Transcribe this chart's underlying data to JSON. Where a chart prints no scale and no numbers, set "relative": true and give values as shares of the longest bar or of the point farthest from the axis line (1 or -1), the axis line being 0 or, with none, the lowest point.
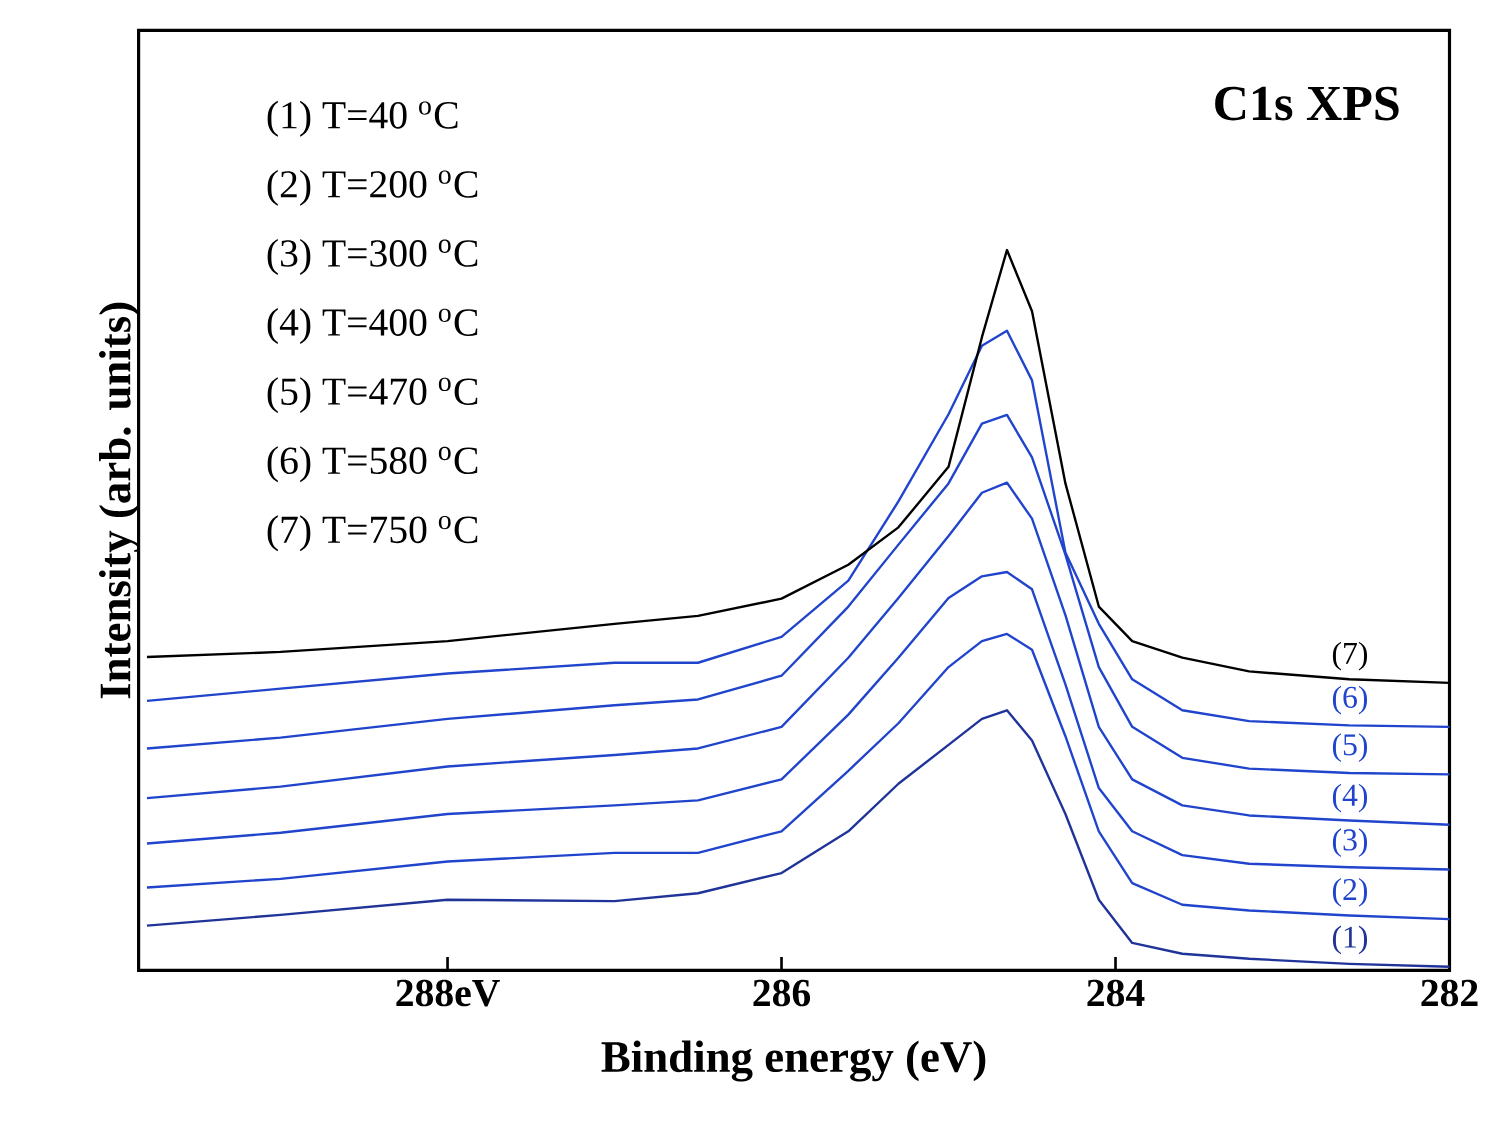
{
  "chart_data": {
    "type": "line",
    "title": "C1s XPS",
    "xlabel": "Binding energy (eV)",
    "ylabel": "Intensity (arb. units)",
    "relative": true,
    "legend": false,
    "grid": false,
    "marker": "none",
    "line_style": "solid",
    "xlim": [
      289.85,
      282
    ],
    "xticks": [
      {
        "value": 288,
        "label": "288eV"
      },
      286,
      284,
      282
    ],
    "x": [
      289.8,
      289,
      288,
      287,
      286.5,
      286,
      285.6,
      285.3,
      285.0,
      284.8,
      284.65,
      284.5,
      284.3,
      284.1,
      283.9,
      283.6,
      283.2,
      282.6,
      282.0
    ],
    "annotations": [
      "(1) T=40 $^{o}$C",
      "(2) T=200 $^{o}$C",
      "(3) T=300 $^{o}$C",
      "(4) T=400 $^{o}$C",
      "(5) T=470 $^{o}$C",
      "(6) T=580 $^{o}$C",
      "(7) T=750 $^{o}$C"
    ],
    "series": [
      {
        "name": "(1)",
        "color": "#1f3399",
        "values": [
          0.062,
          0.077,
          0.098,
          0.096,
          0.107,
          0.135,
          0.193,
          0.259,
          0.313,
          0.349,
          0.361,
          0.319,
          0.217,
          0.098,
          0.038,
          0.023,
          0.016,
          0.009,
          0.005
        ]
      },
      {
        "name": "(2)",
        "color": "#2044cc",
        "values": [
          0.115,
          0.127,
          0.151,
          0.163,
          0.163,
          0.193,
          0.277,
          0.343,
          0.421,
          0.457,
          0.467,
          0.445,
          0.325,
          0.193,
          0.121,
          0.091,
          0.083,
          0.076,
          0.071
        ]
      },
      {
        "name": "(3)",
        "color": "#2044cc",
        "values": [
          0.176,
          0.191,
          0.217,
          0.229,
          0.236,
          0.265,
          0.355,
          0.434,
          0.517,
          0.547,
          0.553,
          0.529,
          0.397,
          0.253,
          0.193,
          0.16,
          0.148,
          0.143,
          0.14
        ]
      },
      {
        "name": "(4)",
        "color": "#2044cc",
        "values": [
          0.239,
          0.255,
          0.283,
          0.299,
          0.308,
          0.338,
          0.434,
          0.517,
          0.603,
          0.663,
          0.677,
          0.627,
          0.493,
          0.338,
          0.265,
          0.229,
          0.215,
          0.208,
          0.202
        ]
      },
      {
        "name": "(5)",
        "color": "#2044cc",
        "values": [
          0.308,
          0.323,
          0.349,
          0.368,
          0.376,
          0.409,
          0.505,
          0.591,
          0.676,
          0.759,
          0.771,
          0.712,
          0.577,
          0.421,
          0.338,
          0.295,
          0.28,
          0.274,
          0.272
        ]
      },
      {
        "name": "(6)",
        "color": "#2044cc",
        "values": [
          0.374,
          0.391,
          0.412,
          0.427,
          0.427,
          0.463,
          0.541,
          0.651,
          0.772,
          0.867,
          0.888,
          0.819,
          0.58,
          0.481,
          0.404,
          0.361,
          0.346,
          0.34,
          0.338
        ]
      },
      {
        "name": "(7)",
        "color": "#000000",
        "values": [
          0.435,
          0.442,
          0.457,
          0.481,
          0.492,
          0.516,
          0.563,
          0.615,
          0.699,
          0.879,
          1.0,
          0.915,
          0.676,
          0.505,
          0.457,
          0.434,
          0.415,
          0.404,
          0.399
        ]
      }
    ]
  }
}
